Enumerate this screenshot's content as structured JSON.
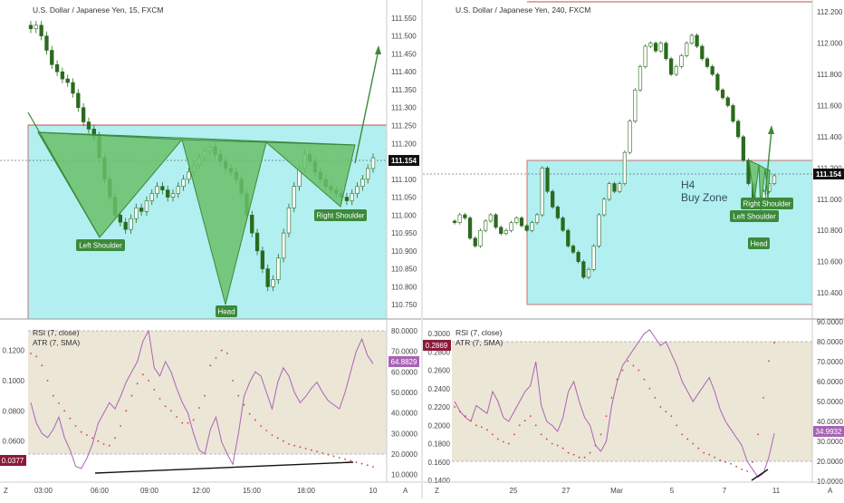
{
  "colors": {
    "zone_fill": "#b2eff0",
    "resistance": "#c0504d",
    "pattern_fill": "#6abf6a",
    "pattern_stroke": "#3a8a3a",
    "arrow": "#3a8a3a",
    "rsi_line": "#a864b4",
    "atr_dots": "#d04040",
    "candle_up": "#ffffff",
    "candle_down": "#2b6a1f",
    "oscillator_band": "#ece6d7"
  },
  "chart_data": [
    {
      "type": "candlestick",
      "title": "U.S. Dollar / Japanese Yen, 15, FXCM",
      "last_price": "111.154",
      "y_ticks": [
        "111.550",
        "111.500",
        "111.450",
        "111.400",
        "111.350",
        "111.300",
        "111.250",
        "111.200",
        "111.150",
        "111.100",
        "111.050",
        "111.000",
        "110.950",
        "110.900",
        "110.850",
        "110.800",
        "110.750"
      ],
      "ylim": [
        110.72,
        111.57
      ],
      "x_ticks": [
        "03:00",
        "06:00",
        "09:00",
        "12:00",
        "15:00",
        "18:00",
        "10"
      ],
      "buy_zone": [
        110.73,
        111.25
      ],
      "resistance_level": 111.25,
      "pattern": "inverse head and shoulders",
      "annotations": {
        "left_shoulder": "Left Shoulder",
        "head": "Head",
        "right_shoulder": "Right Shoulder"
      },
      "pattern_points": [
        {
          "label": "Left Shoulder",
          "price": 110.95
        },
        {
          "label": "Head",
          "price": 110.78
        },
        {
          "label": "Right Shoulder",
          "price": 111.03
        }
      ],
      "closes": [
        111.52,
        111.53,
        111.5,
        111.46,
        111.42,
        111.4,
        111.38,
        111.37,
        111.34,
        111.3,
        111.26,
        111.24,
        111.22,
        111.16,
        111.1,
        111.05,
        111.0,
        110.98,
        110.96,
        110.99,
        111.02,
        111.01,
        111.04,
        111.06,
        111.08,
        111.07,
        111.05,
        111.06,
        111.08,
        111.1,
        111.12,
        111.14,
        111.16,
        111.18,
        111.19,
        111.17,
        111.15,
        111.13,
        111.12,
        111.1,
        111.06,
        111.0,
        110.95,
        110.9,
        110.85,
        110.8,
        110.82,
        110.88,
        110.95,
        111.02,
        111.08,
        111.13,
        111.17,
        111.15,
        111.12,
        111.1,
        111.08,
        111.07,
        111.06,
        111.05,
        111.04,
        111.06,
        111.08,
        111.1,
        111.13,
        111.16
      ]
    },
    {
      "type": "candlestick",
      "title": "U.S. Dollar / Japanese Yen, 240, FXCM",
      "last_price": "111.154",
      "y_ticks": [
        "112.200",
        "112.000",
        "111.800",
        "111.600",
        "111.400",
        "111.200",
        "111.000",
        "110.800",
        "110.600",
        "110.400"
      ],
      "ylim": [
        110.36,
        112.23
      ],
      "x_ticks": [
        "25",
        "27",
        "Mar",
        "5",
        "7",
        "11"
      ],
      "zone_label_line1": "H4",
      "zone_label_line2": "Buy Zone",
      "buy_zone": [
        110.4,
        111.25
      ],
      "annotations": {
        "left_shoulder": "Left Shoulder",
        "head": "Head",
        "right_shoulder": "Right Shoulder"
      },
      "closes": [
        110.85,
        110.9,
        110.88,
        110.75,
        110.7,
        110.8,
        110.86,
        110.9,
        110.82,
        110.78,
        110.8,
        110.85,
        110.88,
        110.83,
        110.8,
        110.85,
        110.9,
        111.2,
        111.05,
        110.95,
        110.88,
        110.8,
        110.7,
        110.66,
        110.6,
        110.5,
        110.55,
        110.7,
        110.9,
        111.0,
        111.1,
        111.05,
        111.1,
        111.3,
        111.5,
        111.7,
        111.85,
        111.98,
        112.0,
        111.95,
        112.0,
        111.9,
        111.8,
        111.85,
        111.92,
        112.0,
        112.05,
        111.98,
        111.9,
        111.85,
        111.8,
        111.7,
        111.65,
        111.6,
        111.5,
        111.4,
        111.25,
        111.1,
        111.0,
        110.98,
        111.05,
        111.1,
        111.15
      ]
    }
  ],
  "indicators": [
    {
      "rsi_label": "RSI (7, close)",
      "atr_label": "ATR (7, SMA)",
      "rsi_value": "64.8829",
      "atr_value": "0.0377",
      "rsi_ticks": [
        "80.0000",
        "70.0000",
        "60.0000",
        "50.0000",
        "40.0000",
        "30.0000",
        "20.0000",
        "10.0000"
      ],
      "atr_ticks": [
        "0.1200",
        "0.1000",
        "0.0800",
        "0.0600"
      ],
      "rsi": [
        45,
        35,
        30,
        28,
        32,
        38,
        28,
        22,
        14,
        13,
        18,
        25,
        35,
        40,
        45,
        42,
        48,
        55,
        60,
        65,
        75,
        80,
        62,
        58,
        65,
        60,
        52,
        45,
        40,
        30,
        22,
        20,
        32,
        38,
        26,
        20,
        15,
        30,
        48,
        55,
        60,
        58,
        50,
        42,
        55,
        62,
        58,
        50,
        45,
        48,
        52,
        55,
        50,
        46,
        44,
        42,
        50,
        60,
        70,
        76,
        68,
        64
      ],
      "atr": [
        0.118,
        0.116,
        0.11,
        0.1,
        0.09,
        0.085,
        0.08,
        0.075,
        0.07,
        0.066,
        0.064,
        0.062,
        0.06,
        0.058,
        0.057,
        0.062,
        0.07,
        0.08,
        0.09,
        0.098,
        0.104,
        0.1,
        0.094,
        0.088,
        0.083,
        0.08,
        0.076,
        0.072,
        0.072,
        0.074,
        0.082,
        0.09,
        0.11,
        0.115,
        0.12,
        0.118,
        0.1,
        0.09,
        0.084,
        0.078,
        0.074,
        0.07,
        0.067,
        0.064,
        0.062,
        0.06,
        0.058,
        0.057,
        0.056,
        0.055,
        0.054,
        0.053,
        0.052,
        0.051,
        0.05,
        0.049,
        0.048,
        0.047,
        0.046,
        0.045,
        0.044,
        0.043
      ],
      "divergence": "bullish"
    },
    {
      "rsi_label": "RSI (7, close)",
      "atr_label": "ATR (7, SMA)",
      "rsi_value": "34.9932",
      "atr_value": "0.2869",
      "rsi_ticks": [
        "90.0000",
        "80.0000",
        "70.0000",
        "60.0000",
        "50.0000",
        "40.0000",
        "30.0000",
        "20.0000",
        "10.0000"
      ],
      "atr_ticks": [
        "0.3000",
        "0.2800",
        "0.2600",
        "0.2400",
        "0.2200",
        "0.2000",
        "0.1800",
        "0.1600",
        "0.1400"
      ],
      "rsi": [
        50,
        45,
        42,
        40,
        48,
        46,
        44,
        55,
        50,
        42,
        40,
        45,
        50,
        55,
        58,
        70,
        48,
        40,
        38,
        35,
        42,
        55,
        60,
        50,
        42,
        38,
        28,
        25,
        30,
        48,
        60,
        68,
        72,
        76,
        80,
        84,
        86,
        82,
        78,
        80,
        74,
        68,
        60,
        55,
        50,
        54,
        58,
        62,
        55,
        46,
        40,
        36,
        32,
        28,
        20,
        16,
        12,
        14,
        22,
        34
      ],
      "atr": [
        0.22,
        0.215,
        0.21,
        0.205,
        0.2,
        0.198,
        0.195,
        0.19,
        0.185,
        0.182,
        0.18,
        0.19,
        0.2,
        0.205,
        0.21,
        0.2,
        0.19,
        0.185,
        0.18,
        0.178,
        0.175,
        0.17,
        0.168,
        0.165,
        0.165,
        0.17,
        0.178,
        0.19,
        0.21,
        0.23,
        0.25,
        0.26,
        0.27,
        0.265,
        0.26,
        0.25,
        0.24,
        0.23,
        0.22,
        0.215,
        0.21,
        0.2,
        0.19,
        0.185,
        0.18,
        0.175,
        0.17,
        0.168,
        0.165,
        0.162,
        0.16,
        0.158,
        0.155,
        0.152,
        0.15,
        0.16,
        0.19,
        0.23,
        0.27,
        0.29
      ],
      "divergence": "bullish"
    }
  ],
  "labels": {
    "z_left": "Z",
    "a_left": "A",
    "z_right": "Z",
    "a_right": "A"
  }
}
